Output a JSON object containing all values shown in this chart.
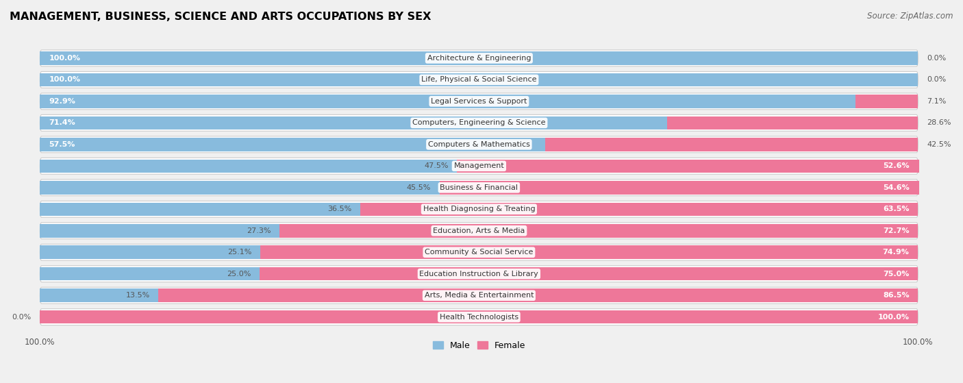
{
  "title": "MANAGEMENT, BUSINESS, SCIENCE AND ARTS OCCUPATIONS BY SEX",
  "source": "Source: ZipAtlas.com",
  "categories": [
    "Architecture & Engineering",
    "Life, Physical & Social Science",
    "Legal Services & Support",
    "Computers, Engineering & Science",
    "Computers & Mathematics",
    "Management",
    "Business & Financial",
    "Health Diagnosing & Treating",
    "Education, Arts & Media",
    "Community & Social Service",
    "Education Instruction & Library",
    "Arts, Media & Entertainment",
    "Health Technologists"
  ],
  "male": [
    100.0,
    100.0,
    92.9,
    71.4,
    57.5,
    47.5,
    45.5,
    36.5,
    27.3,
    25.1,
    25.0,
    13.5,
    0.0
  ],
  "female": [
    0.0,
    0.0,
    7.1,
    28.6,
    42.5,
    52.6,
    54.6,
    63.5,
    72.7,
    74.9,
    75.0,
    86.5,
    100.0
  ],
  "male_color": "#88bbdd",
  "female_color": "#ee7799",
  "bg_color": "#f0f0f0",
  "bar_bg_color": "#ffffff",
  "row_edge_color": "#cccccc",
  "title_fontsize": 11.5,
  "source_fontsize": 8.5,
  "label_fontsize": 8,
  "legend_fontsize": 9,
  "inside_label_color_male": "#ffffff",
  "inside_label_color_female": "#ffffff",
  "outside_label_color": "#555555",
  "center_label_bg": "#ffffff",
  "center_label_color": "#333333"
}
